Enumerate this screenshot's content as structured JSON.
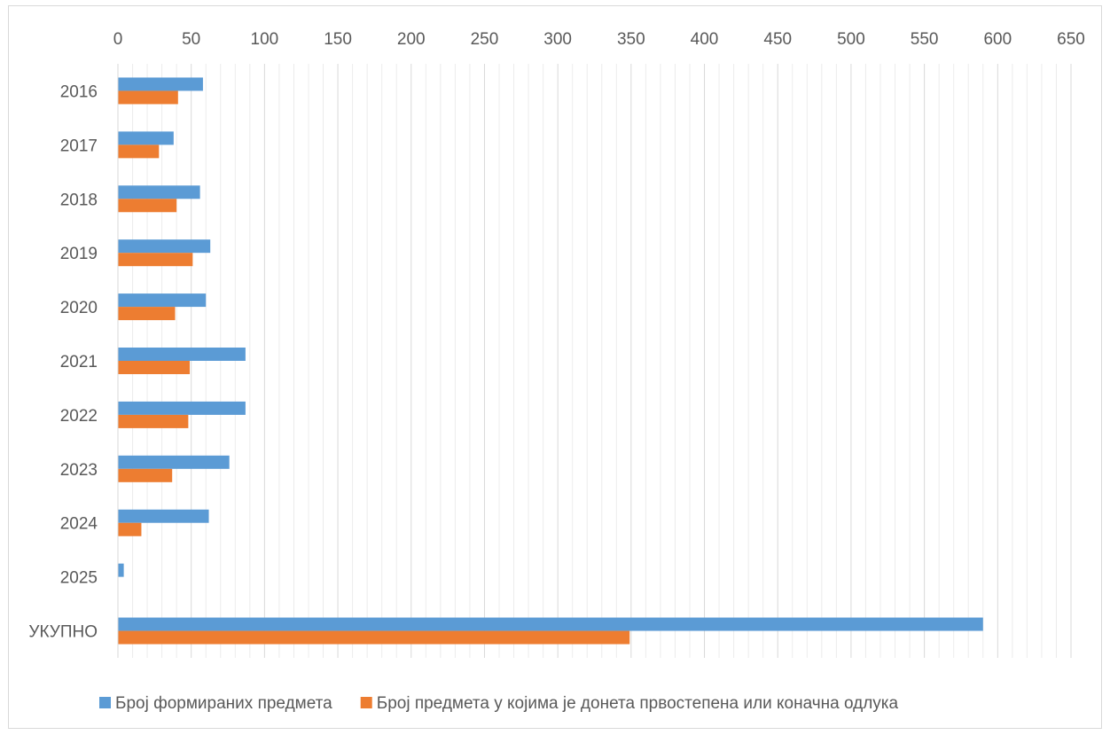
{
  "chart_data": {
    "type": "bar",
    "orientation": "horizontal",
    "title": "",
    "xlabel": "",
    "ylabel": "",
    "categories": [
      "2016",
      "2017",
      "2018",
      "2019",
      "2020",
      "2021",
      "2022",
      "2023",
      "2024",
      "2025",
      "УКУПНО"
    ],
    "series": [
      {
        "name": "Број формираних предмета",
        "color": "#5B9BD5",
        "values": [
          58,
          38,
          56,
          63,
          60,
          87,
          87,
          76,
          62,
          4,
          590
        ]
      },
      {
        "name": "Број предмета у којима је донета првостепена или коначна одлука",
        "color": "#ED7D31",
        "values": [
          41,
          28,
          40,
          51,
          39,
          49,
          48,
          37,
          16,
          0,
          349
        ]
      }
    ],
    "xlim": [
      0,
      650
    ],
    "x_major_step": 50,
    "x_minor_step": 10,
    "x_ticks": [
      "0",
      "50",
      "100",
      "150",
      "200",
      "250",
      "300",
      "350",
      "400",
      "450",
      "500",
      "550",
      "600",
      "650"
    ],
    "axis_position": "top",
    "grid": true,
    "legend_position": "bottom"
  }
}
